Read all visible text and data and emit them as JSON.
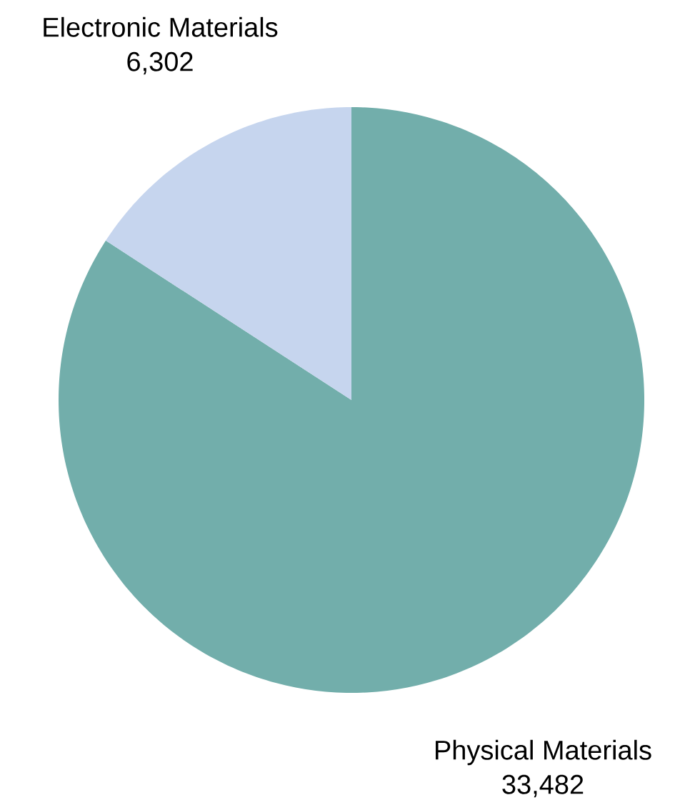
{
  "chart_data": {
    "type": "pie",
    "categories": [
      "Physical Materials",
      "Electronic Materials"
    ],
    "values": [
      33482,
      6302
    ],
    "value_labels": [
      "33,482",
      "6,302"
    ],
    "colors": [
      "#72aeab",
      "#c6d5ee"
    ]
  }
}
